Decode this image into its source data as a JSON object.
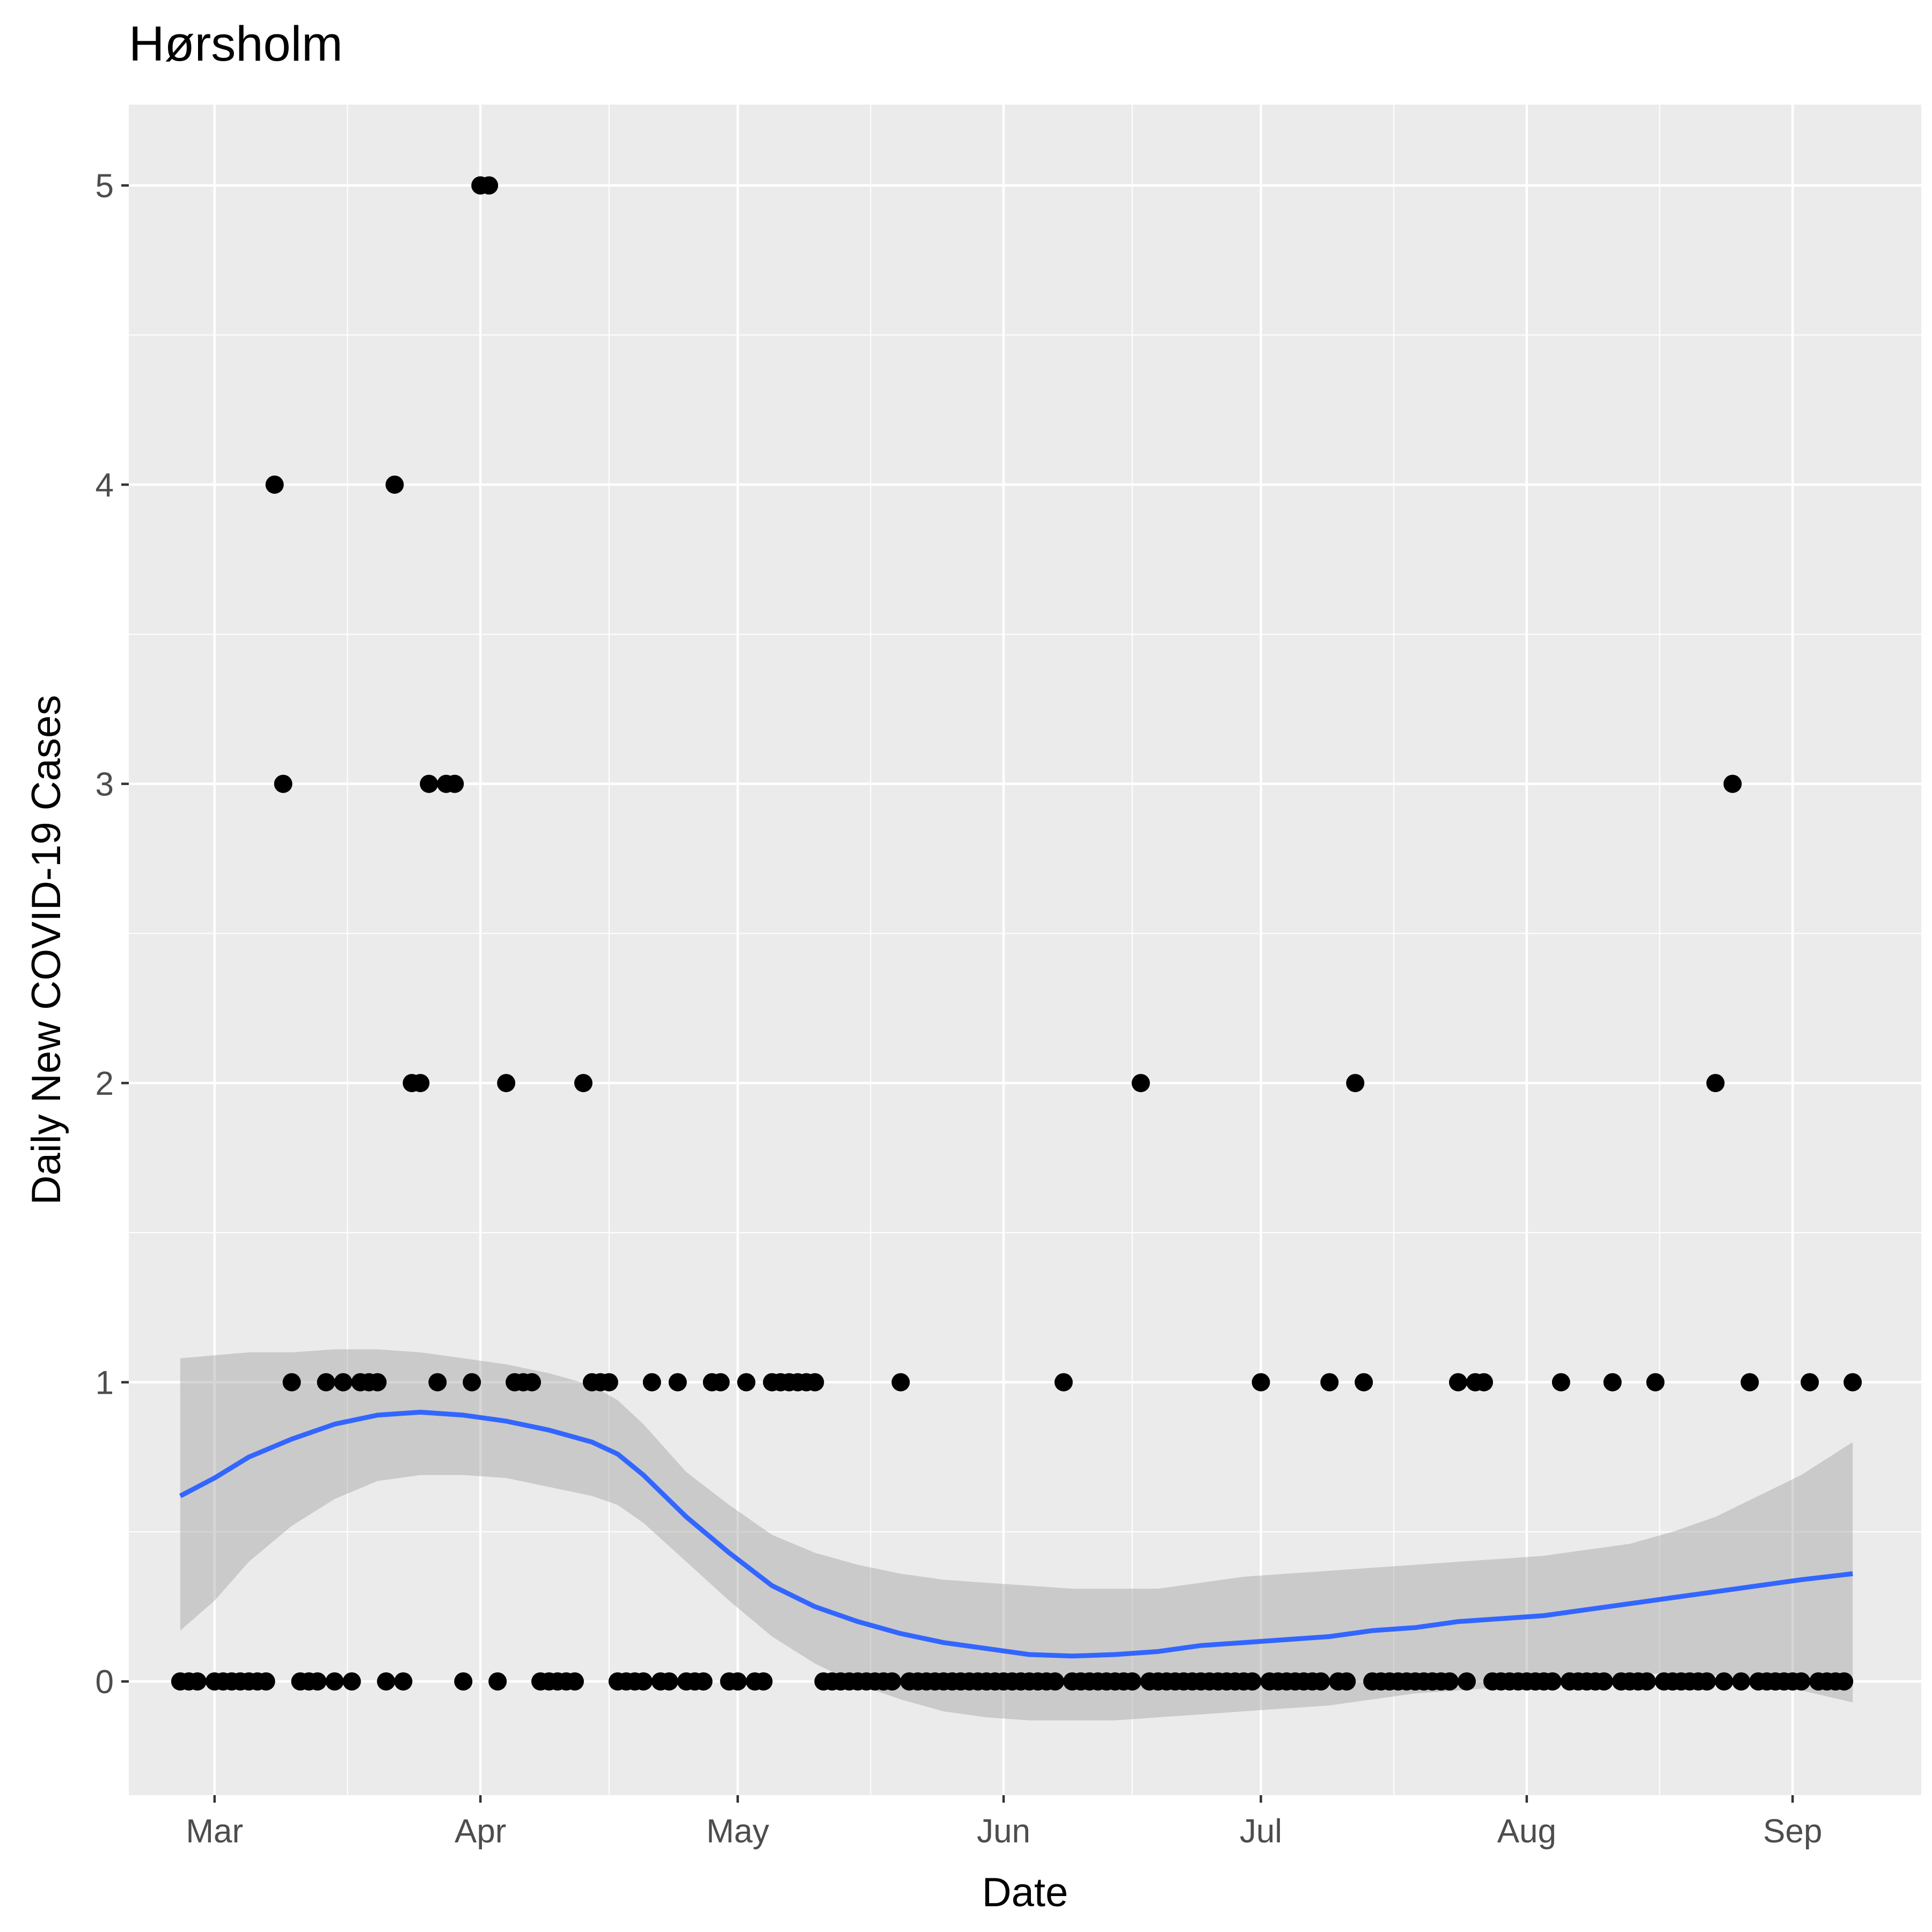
{
  "chart_data": {
    "type": "scatter",
    "title": "Hørsholm",
    "xlabel": "Date",
    "ylabel": "Daily New COVID-19 Cases",
    "x_type": "date",
    "xlim": [
      "2020-02-20",
      "2020-09-16"
    ],
    "ylim": [
      -0.38,
      5.27
    ],
    "x_ticks": [
      {
        "date": "2020-03-01",
        "label": "Mar"
      },
      {
        "date": "2020-04-01",
        "label": "Apr"
      },
      {
        "date": "2020-05-01",
        "label": "May"
      },
      {
        "date": "2020-06-01",
        "label": "Jun"
      },
      {
        "date": "2020-07-01",
        "label": "Jul"
      },
      {
        "date": "2020-08-01",
        "label": "Aug"
      },
      {
        "date": "2020-09-01",
        "label": "Sep"
      }
    ],
    "y_ticks": [
      0,
      1,
      2,
      3,
      4,
      5
    ],
    "grid": true,
    "colors": {
      "panel": "#ebebeb",
      "grid": "#ffffff",
      "points": "#000000",
      "smooth_line": "#3366ff",
      "ribbon": "#999999"
    },
    "series": [
      {
        "type": "points",
        "points": [
          [
            "2020-02-26",
            0
          ],
          [
            "2020-02-27",
            0
          ],
          [
            "2020-02-28",
            0
          ],
          [
            "2020-03-01",
            0
          ],
          [
            "2020-03-02",
            0
          ],
          [
            "2020-03-03",
            0
          ],
          [
            "2020-03-04",
            0
          ],
          [
            "2020-03-05",
            0
          ],
          [
            "2020-03-06",
            0
          ],
          [
            "2020-03-07",
            0
          ],
          [
            "2020-03-08",
            4
          ],
          [
            "2020-03-09",
            3
          ],
          [
            "2020-03-10",
            1
          ],
          [
            "2020-03-11",
            0
          ],
          [
            "2020-03-12",
            0
          ],
          [
            "2020-03-13",
            0
          ],
          [
            "2020-03-14",
            1
          ],
          [
            "2020-03-15",
            0
          ],
          [
            "2020-03-16",
            1
          ],
          [
            "2020-03-17",
            0
          ],
          [
            "2020-03-18",
            1
          ],
          [
            "2020-03-19",
            1
          ],
          [
            "2020-03-20",
            1
          ],
          [
            "2020-03-21",
            0
          ],
          [
            "2020-03-22",
            4
          ],
          [
            "2020-03-23",
            0
          ],
          [
            "2020-03-24",
            2
          ],
          [
            "2020-03-25",
            2
          ],
          [
            "2020-03-26",
            3
          ],
          [
            "2020-03-27",
            1
          ],
          [
            "2020-03-28",
            3
          ],
          [
            "2020-03-29",
            3
          ],
          [
            "2020-03-30",
            0
          ],
          [
            "2020-03-31",
            1
          ],
          [
            "2020-04-01",
            5
          ],
          [
            "2020-04-02",
            5
          ],
          [
            "2020-04-03",
            0
          ],
          [
            "2020-04-04",
            2
          ],
          [
            "2020-04-05",
            1
          ],
          [
            "2020-04-06",
            1
          ],
          [
            "2020-04-07",
            1
          ],
          [
            "2020-04-08",
            0
          ],
          [
            "2020-04-09",
            0
          ],
          [
            "2020-04-10",
            0
          ],
          [
            "2020-04-11",
            0
          ],
          [
            "2020-04-12",
            0
          ],
          [
            "2020-04-13",
            2
          ],
          [
            "2020-04-14",
            1
          ],
          [
            "2020-04-15",
            1
          ],
          [
            "2020-04-16",
            1
          ],
          [
            "2020-04-17",
            0
          ],
          [
            "2020-04-18",
            0
          ],
          [
            "2020-04-19",
            0
          ],
          [
            "2020-04-20",
            0
          ],
          [
            "2020-04-21",
            1
          ],
          [
            "2020-04-22",
            0
          ],
          [
            "2020-04-23",
            0
          ],
          [
            "2020-04-24",
            1
          ],
          [
            "2020-04-25",
            0
          ],
          [
            "2020-04-26",
            0
          ],
          [
            "2020-04-27",
            0
          ],
          [
            "2020-04-28",
            1
          ],
          [
            "2020-04-29",
            1
          ],
          [
            "2020-04-30",
            0
          ],
          [
            "2020-05-01",
            0
          ],
          [
            "2020-05-02",
            1
          ],
          [
            "2020-05-03",
            0
          ],
          [
            "2020-05-04",
            0
          ],
          [
            "2020-05-05",
            1
          ],
          [
            "2020-05-06",
            1
          ],
          [
            "2020-05-07",
            1
          ],
          [
            "2020-05-08",
            1
          ],
          [
            "2020-05-09",
            1
          ],
          [
            "2020-05-10",
            1
          ],
          [
            "2020-05-11",
            0
          ],
          [
            "2020-05-12",
            0
          ],
          [
            "2020-05-13",
            0
          ],
          [
            "2020-05-14",
            0
          ],
          [
            "2020-05-15",
            0
          ],
          [
            "2020-05-16",
            0
          ],
          [
            "2020-05-17",
            0
          ],
          [
            "2020-05-18",
            0
          ],
          [
            "2020-05-19",
            0
          ],
          [
            "2020-05-20",
            1
          ],
          [
            "2020-05-21",
            0
          ],
          [
            "2020-05-22",
            0
          ],
          [
            "2020-05-23",
            0
          ],
          [
            "2020-05-24",
            0
          ],
          [
            "2020-05-25",
            0
          ],
          [
            "2020-05-26",
            0
          ],
          [
            "2020-05-27",
            0
          ],
          [
            "2020-05-28",
            0
          ],
          [
            "2020-05-29",
            0
          ],
          [
            "2020-05-30",
            0
          ],
          [
            "2020-05-31",
            0
          ],
          [
            "2020-06-01",
            0
          ],
          [
            "2020-06-02",
            0
          ],
          [
            "2020-06-03",
            0
          ],
          [
            "2020-06-04",
            0
          ],
          [
            "2020-06-05",
            0
          ],
          [
            "2020-06-06",
            0
          ],
          [
            "2020-06-07",
            0
          ],
          [
            "2020-06-08",
            1
          ],
          [
            "2020-06-09",
            0
          ],
          [
            "2020-06-10",
            0
          ],
          [
            "2020-06-11",
            0
          ],
          [
            "2020-06-12",
            0
          ],
          [
            "2020-06-13",
            0
          ],
          [
            "2020-06-14",
            0
          ],
          [
            "2020-06-15",
            0
          ],
          [
            "2020-06-16",
            0
          ],
          [
            "2020-06-17",
            2
          ],
          [
            "2020-06-18",
            0
          ],
          [
            "2020-06-19",
            0
          ],
          [
            "2020-06-20",
            0
          ],
          [
            "2020-06-21",
            0
          ],
          [
            "2020-06-22",
            0
          ],
          [
            "2020-06-23",
            0
          ],
          [
            "2020-06-24",
            0
          ],
          [
            "2020-06-25",
            0
          ],
          [
            "2020-06-26",
            0
          ],
          [
            "2020-06-27",
            0
          ],
          [
            "2020-06-28",
            0
          ],
          [
            "2020-06-29",
            0
          ],
          [
            "2020-06-30",
            0
          ],
          [
            "2020-07-01",
            1
          ],
          [
            "2020-07-02",
            0
          ],
          [
            "2020-07-03",
            0
          ],
          [
            "2020-07-04",
            0
          ],
          [
            "2020-07-05",
            0
          ],
          [
            "2020-07-06",
            0
          ],
          [
            "2020-07-07",
            0
          ],
          [
            "2020-07-08",
            0
          ],
          [
            "2020-07-09",
            1
          ],
          [
            "2020-07-10",
            0
          ],
          [
            "2020-07-11",
            0
          ],
          [
            "2020-07-12",
            2
          ],
          [
            "2020-07-13",
            1
          ],
          [
            "2020-07-14",
            0
          ],
          [
            "2020-07-15",
            0
          ],
          [
            "2020-07-16",
            0
          ],
          [
            "2020-07-17",
            0
          ],
          [
            "2020-07-18",
            0
          ],
          [
            "2020-07-19",
            0
          ],
          [
            "2020-07-20",
            0
          ],
          [
            "2020-07-21",
            0
          ],
          [
            "2020-07-22",
            0
          ],
          [
            "2020-07-23",
            0
          ],
          [
            "2020-07-24",
            1
          ],
          [
            "2020-07-25",
            0
          ],
          [
            "2020-07-26",
            1
          ],
          [
            "2020-07-27",
            1
          ],
          [
            "2020-07-28",
            0
          ],
          [
            "2020-07-29",
            0
          ],
          [
            "2020-07-30",
            0
          ],
          [
            "2020-07-31",
            0
          ],
          [
            "2020-08-01",
            0
          ],
          [
            "2020-08-02",
            0
          ],
          [
            "2020-08-03",
            0
          ],
          [
            "2020-08-04",
            0
          ],
          [
            "2020-08-05",
            1
          ],
          [
            "2020-08-06",
            0
          ],
          [
            "2020-08-07",
            0
          ],
          [
            "2020-08-08",
            0
          ],
          [
            "2020-08-09",
            0
          ],
          [
            "2020-08-10",
            0
          ],
          [
            "2020-08-11",
            1
          ],
          [
            "2020-08-12",
            0
          ],
          [
            "2020-08-13",
            0
          ],
          [
            "2020-08-14",
            0
          ],
          [
            "2020-08-15",
            0
          ],
          [
            "2020-08-16",
            1
          ],
          [
            "2020-08-17",
            0
          ],
          [
            "2020-08-18",
            0
          ],
          [
            "2020-08-19",
            0
          ],
          [
            "2020-08-20",
            0
          ],
          [
            "2020-08-21",
            0
          ],
          [
            "2020-08-22",
            0
          ],
          [
            "2020-08-23",
            2
          ],
          [
            "2020-08-24",
            0
          ],
          [
            "2020-08-25",
            3
          ],
          [
            "2020-08-26",
            0
          ],
          [
            "2020-08-27",
            1
          ],
          [
            "2020-08-28",
            0
          ],
          [
            "2020-08-29",
            0
          ],
          [
            "2020-08-30",
            0
          ],
          [
            "2020-08-31",
            0
          ],
          [
            "2020-09-01",
            0
          ],
          [
            "2020-09-02",
            0
          ],
          [
            "2020-09-03",
            1
          ],
          [
            "2020-09-04",
            0
          ],
          [
            "2020-09-05",
            0
          ],
          [
            "2020-09-06",
            0
          ],
          [
            "2020-09-07",
            0
          ],
          [
            "2020-09-08",
            1
          ]
        ]
      },
      {
        "type": "smooth",
        "points": [
          [
            "2020-02-26",
            0.62
          ],
          [
            "2020-03-01",
            0.68
          ],
          [
            "2020-03-05",
            0.75
          ],
          [
            "2020-03-10",
            0.81
          ],
          [
            "2020-03-15",
            0.86
          ],
          [
            "2020-03-20",
            0.89
          ],
          [
            "2020-03-25",
            0.9
          ],
          [
            "2020-03-30",
            0.89
          ],
          [
            "2020-04-04",
            0.87
          ],
          [
            "2020-04-09",
            0.84
          ],
          [
            "2020-04-14",
            0.8
          ],
          [
            "2020-04-17",
            0.76
          ],
          [
            "2020-04-20",
            0.69
          ],
          [
            "2020-04-25",
            0.55
          ],
          [
            "2020-04-30",
            0.43
          ],
          [
            "2020-05-05",
            0.32
          ],
          [
            "2020-05-10",
            0.25
          ],
          [
            "2020-05-15",
            0.2
          ],
          [
            "2020-05-20",
            0.16
          ],
          [
            "2020-05-25",
            0.13
          ],
          [
            "2020-05-30",
            0.11
          ],
          [
            "2020-06-04",
            0.09
          ],
          [
            "2020-06-09",
            0.085
          ],
          [
            "2020-06-14",
            0.09
          ],
          [
            "2020-06-19",
            0.1
          ],
          [
            "2020-06-24",
            0.12
          ],
          [
            "2020-06-29",
            0.13
          ],
          [
            "2020-07-04",
            0.14
          ],
          [
            "2020-07-09",
            0.15
          ],
          [
            "2020-07-14",
            0.17
          ],
          [
            "2020-07-19",
            0.18
          ],
          [
            "2020-07-24",
            0.2
          ],
          [
            "2020-07-29",
            0.21
          ],
          [
            "2020-08-03",
            0.22
          ],
          [
            "2020-08-08",
            0.24
          ],
          [
            "2020-08-13",
            0.26
          ],
          [
            "2020-08-18",
            0.28
          ],
          [
            "2020-08-23",
            0.3
          ],
          [
            "2020-08-28",
            0.32
          ],
          [
            "2020-09-02",
            0.34
          ],
          [
            "2020-09-08",
            0.36
          ]
        ],
        "lower": [
          0.17,
          0.27,
          0.4,
          0.52,
          0.61,
          0.67,
          0.69,
          0.69,
          0.68,
          0.65,
          0.62,
          0.59,
          0.53,
          0.4,
          0.27,
          0.15,
          0.06,
          -0.01,
          -0.06,
          -0.1,
          -0.12,
          -0.13,
          -0.13,
          -0.13,
          -0.12,
          -0.11,
          -0.1,
          -0.09,
          -0.08,
          -0.06,
          -0.04,
          -0.03,
          -0.02,
          -0.01,
          0.0,
          0.02,
          0.03,
          0.02,
          0.0,
          -0.03,
          -0.07
        ],
        "upper": [
          1.08,
          1.09,
          1.1,
          1.1,
          1.11,
          1.11,
          1.1,
          1.08,
          1.06,
          1.03,
          0.99,
          0.94,
          0.86,
          0.7,
          0.59,
          0.49,
          0.43,
          0.39,
          0.36,
          0.34,
          0.33,
          0.32,
          0.31,
          0.31,
          0.31,
          0.33,
          0.35,
          0.36,
          0.37,
          0.38,
          0.39,
          0.4,
          0.41,
          0.42,
          0.44,
          0.46,
          0.5,
          0.55,
          0.62,
          0.69,
          0.8
        ]
      }
    ]
  }
}
